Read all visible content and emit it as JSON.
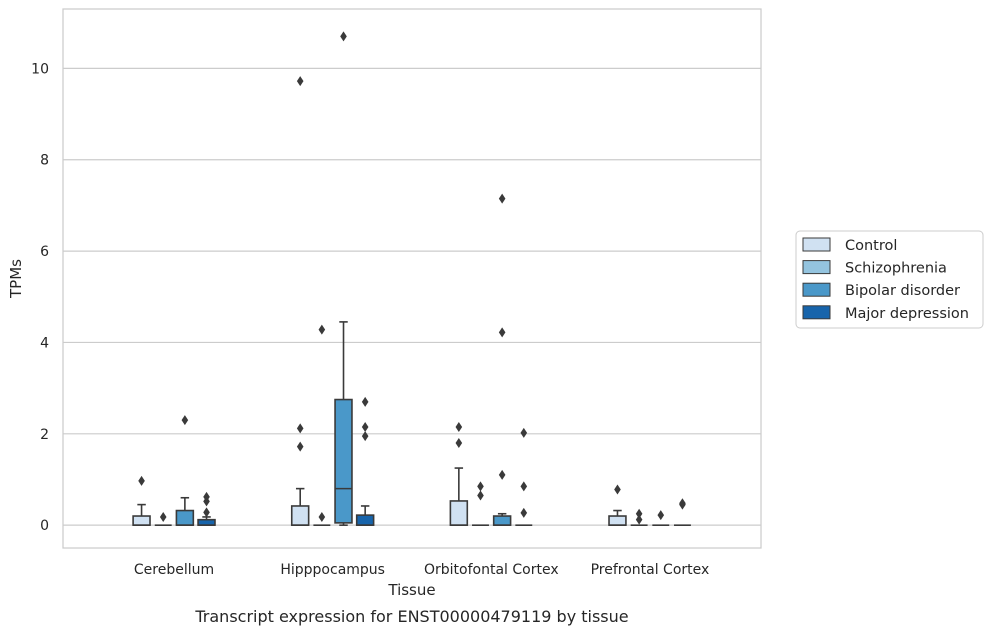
{
  "chart_data": {
    "type": "box",
    "caption": "Transcript expression for ENST00000479119 by tissue",
    "xlabel": "Tissue",
    "ylabel": "TPMs",
    "ylim": [
      -0.5,
      11.3
    ],
    "yticks": [
      0,
      2,
      4,
      6,
      8,
      10
    ],
    "grid": "horizontal",
    "legend_position": "right",
    "categories": [
      "Cerebellum",
      "Hipppocampus",
      "Orbitofontal Cortex",
      "Prefrontal Cortex"
    ],
    "series": [
      {
        "name": "Control",
        "color": "#d0e1f2",
        "boxes": [
          {
            "q1": 0.0,
            "median": 0.0,
            "q3": 0.2,
            "whisker_low": 0.0,
            "whisker_high": 0.45,
            "outliers": [
              0.97
            ]
          },
          {
            "q1": 0.0,
            "median": 0.0,
            "q3": 0.42,
            "whisker_low": 0.0,
            "whisker_high": 0.8,
            "outliers": [
              1.72,
              2.12,
              9.72
            ]
          },
          {
            "q1": 0.0,
            "median": 0.0,
            "q3": 0.53,
            "whisker_low": 0.0,
            "whisker_high": 1.25,
            "outliers": [
              1.8,
              2.15
            ]
          },
          {
            "q1": 0.0,
            "median": 0.0,
            "q3": 0.2,
            "whisker_low": 0.0,
            "whisker_high": 0.32,
            "outliers": [
              0.78
            ]
          }
        ]
      },
      {
        "name": "Schizophrenia",
        "color": "#94c4df",
        "boxes": [
          {
            "q1": 0.0,
            "median": 0.0,
            "q3": 0.0,
            "whisker_low": 0.0,
            "whisker_high": 0.0,
            "outliers": [
              0.18
            ]
          },
          {
            "q1": 0.0,
            "median": 0.0,
            "q3": 0.0,
            "whisker_low": 0.0,
            "whisker_high": 0.0,
            "outliers": [
              0.18,
              4.28
            ]
          },
          {
            "q1": 0.0,
            "median": 0.0,
            "q3": 0.0,
            "whisker_low": 0.0,
            "whisker_high": 0.0,
            "outliers": [
              0.65,
              0.85
            ]
          },
          {
            "q1": 0.0,
            "median": 0.0,
            "q3": 0.0,
            "whisker_low": 0.0,
            "whisker_high": 0.0,
            "outliers": [
              0.12,
              0.25
            ]
          }
        ]
      },
      {
        "name": "Bipolar disorder",
        "color": "#4a98c9",
        "boxes": [
          {
            "q1": 0.0,
            "median": 0.0,
            "q3": 0.32,
            "whisker_low": 0.0,
            "whisker_high": 0.6,
            "outliers": [
              2.3
            ]
          },
          {
            "q1": 0.05,
            "median": 0.8,
            "q3": 2.75,
            "whisker_low": 0.0,
            "whisker_high": 4.45,
            "outliers": [
              10.7
            ]
          },
          {
            "q1": 0.0,
            "median": 0.0,
            "q3": 0.2,
            "whisker_low": 0.0,
            "whisker_high": 0.25,
            "outliers": [
              1.1,
              4.22,
              7.15
            ]
          },
          {
            "q1": 0.0,
            "median": 0.0,
            "q3": 0.0,
            "whisker_low": 0.0,
            "whisker_high": 0.0,
            "outliers": [
              0.22
            ]
          }
        ]
      },
      {
        "name": "Major depression",
        "color": "#1764ab",
        "boxes": [
          {
            "q1": 0.0,
            "median": 0.0,
            "q3": 0.12,
            "whisker_low": 0.0,
            "whisker_high": 0.18,
            "outliers": [
              0.28,
              0.52,
              0.62
            ]
          },
          {
            "q1": 0.0,
            "median": 0.0,
            "q3": 0.22,
            "whisker_low": 0.0,
            "whisker_high": 0.42,
            "outliers": [
              1.95,
              2.15,
              2.7
            ]
          },
          {
            "q1": 0.0,
            "median": 0.0,
            "q3": 0.0,
            "whisker_low": 0.0,
            "whisker_high": 0.0,
            "outliers": [
              0.27,
              0.85,
              2.02
            ]
          },
          {
            "q1": 0.0,
            "median": 0.0,
            "q3": 0.0,
            "whisker_low": 0.0,
            "whisker_high": 0.0,
            "outliers": [
              0.45,
              0.48
            ]
          }
        ]
      }
    ]
  }
}
